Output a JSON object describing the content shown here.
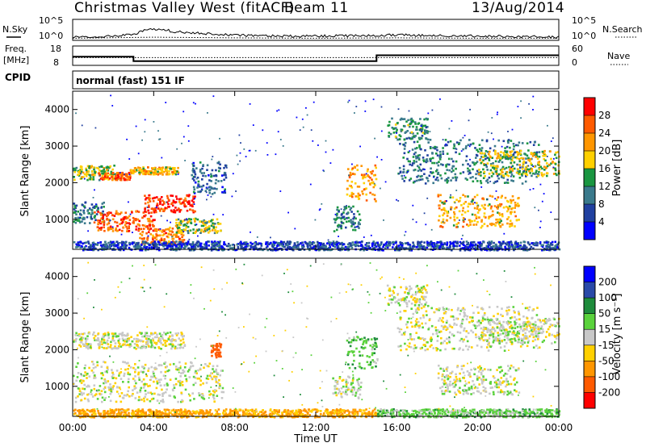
{
  "header": {
    "title": "Christmas Valley West (fitACF)",
    "beam": "Beam 11",
    "date": "13/Aug/2014"
  },
  "strip_labels": {
    "nsky": "N.Sky",
    "nsky_ticks": [
      "10^5",
      "10^0"
    ],
    "nsearch": "N.Search",
    "nsearch_ticks": [
      "10^5",
      "10^0"
    ],
    "freq_line1": "Freq.",
    "freq_line2": "[MHz]",
    "freq_ticks": [
      "18",
      "8"
    ],
    "nave": "Nave",
    "nave_ticks": [
      "60",
      "0"
    ],
    "cpid": "CPID",
    "cpid_value": "normal (fast) 151 IF"
  },
  "x_axis": {
    "ticks": [
      "00:00",
      "04:00",
      "08:00",
      "12:00",
      "16:00",
      "20:00",
      "00:00"
    ],
    "label": "Time UT"
  },
  "chart_data": [
    {
      "type": "line",
      "panel": "noise",
      "series": [
        {
          "name": "N.Sky",
          "style": "solid",
          "x": [
            0,
            1,
            2,
            3,
            3.5,
            4,
            4.5,
            5,
            6,
            7,
            8,
            10,
            12,
            14,
            16,
            18,
            20,
            22,
            24
          ],
          "y": [
            0.15,
            0.18,
            0.2,
            0.3,
            0.45,
            0.55,
            0.5,
            0.42,
            0.35,
            0.3,
            0.25,
            0.2,
            0.2,
            0.22,
            0.25,
            0.22,
            0.2,
            0.18,
            0.15
          ]
        },
        {
          "name": "N.Search",
          "style": "dotted",
          "x": [
            0,
            4,
            8,
            12,
            16,
            20,
            24
          ],
          "y": [
            0.1,
            0.15,
            0.12,
            0.1,
            0.12,
            0.1,
            0.1
          ]
        }
      ]
    },
    {
      "type": "line",
      "panel": "freq_nave",
      "y_left_range": [
        8,
        18
      ],
      "y_right_range": [
        0,
        60
      ],
      "series": [
        {
          "name": "Freq.",
          "style": "solid",
          "x": [
            0,
            3,
            3,
            15,
            15,
            24
          ],
          "y": [
            12.5,
            12.5,
            10.2,
            10.2,
            13.2,
            13.2
          ]
        },
        {
          "name": "Nave",
          "style": "dotted",
          "x": [
            0,
            24
          ],
          "y": [
            24,
            24
          ]
        }
      ]
    },
    {
      "type": "heatmap",
      "panel": "power",
      "ylabel": "Slant Range [km]",
      "yticks": [
        "1000",
        "2000",
        "3000",
        "4000"
      ],
      "xlim": [
        0,
        24
      ],
      "ylim": [
        180,
        4500
      ],
      "colorbar": {
        "label": "Power [dB]",
        "ticks": [
          "28",
          "24",
          "20",
          "16",
          "12",
          "8",
          "4"
        ],
        "colors": [
          "#ff0000",
          "#ff5a00",
          "#ff9600",
          "#ffd000",
          "#1a9641",
          "#3a7a8c",
          "#2040a0",
          "#0000ff"
        ]
      },
      "clusters": [
        {
          "t": [
            0,
            2.2
          ],
          "r": [
            2100,
            2500
          ],
          "v": 16
        },
        {
          "t": [
            1.2,
            2.8
          ],
          "r": [
            2100,
            2300
          ],
          "v": 26
        },
        {
          "t": [
            2.8,
            5.2
          ],
          "r": [
            2250,
            2450
          ],
          "v": 20
        },
        {
          "t": [
            0,
            1.5
          ],
          "r": [
            900,
            1500
          ],
          "v": 10
        },
        {
          "t": [
            1,
            4
          ],
          "r": [
            700,
            1250
          ],
          "v": 26
        },
        {
          "t": [
            3.5,
            6
          ],
          "r": [
            1200,
            1700
          ],
          "v": 28
        },
        {
          "t": [
            3.2,
            5.5
          ],
          "r": [
            350,
            800
          ],
          "v": 24
        },
        {
          "t": [
            5,
            7.3
          ],
          "r": [
            650,
            1050
          ],
          "v": 16
        },
        {
          "t": [
            5.8,
            7.6
          ],
          "r": [
            1700,
            2600
          ],
          "v": 8
        },
        {
          "t": [
            13.5,
            15
          ],
          "r": [
            1500,
            2500
          ],
          "v": 22
        },
        {
          "t": [
            12.8,
            14.2
          ],
          "r": [
            700,
            1400
          ],
          "v": 10
        },
        {
          "t": [
            15.5,
            17.5
          ],
          "r": [
            3200,
            3800
          ],
          "v": 12
        },
        {
          "t": [
            16,
            23
          ],
          "r": [
            2000,
            3200
          ],
          "v": 10
        },
        {
          "t": [
            18,
            22
          ],
          "r": [
            800,
            1700
          ],
          "v": 20
        },
        {
          "t": [
            20,
            24
          ],
          "r": [
            2200,
            2900
          ],
          "v": 18
        },
        {
          "t": [
            0,
            24
          ],
          "r": [
            180,
            420
          ],
          "v": 6
        }
      ]
    },
    {
      "type": "heatmap",
      "panel": "velocity",
      "ylabel": "Slant Range [km]",
      "yticks": [
        "1000",
        "2000",
        "3000",
        "4000"
      ],
      "xlim": [
        0,
        24
      ],
      "ylim": [
        180,
        4500
      ],
      "colorbar": {
        "label": "Velocity [m s⁻¹]",
        "ticks": [
          "200",
          "100",
          "50",
          "15",
          "-15",
          "-50",
          "-100",
          "-200"
        ],
        "colors": [
          "#0000ff",
          "#2a4aa8",
          "#1e8c3c",
          "#5ad23c",
          "#c8c8c8",
          "#ffd000",
          "#ff9600",
          "#ff5a00",
          "#ff0000"
        ]
      },
      "clusters": [
        {
          "t": [
            0,
            5.5
          ],
          "r": [
            2050,
            2500
          ],
          "v": 0
        },
        {
          "t": [
            0,
            7.4
          ],
          "r": [
            600,
            1700
          ],
          "v": 0
        },
        {
          "t": [
            6.8,
            7.3
          ],
          "r": [
            1800,
            2200
          ],
          "v": -150
        },
        {
          "t": [
            13.5,
            15
          ],
          "r": [
            1500,
            2400
          ],
          "v": 40
        },
        {
          "t": [
            12.8,
            14.2
          ],
          "r": [
            700,
            1300
          ],
          "v": 0
        },
        {
          "t": [
            15.5,
            17.5
          ],
          "r": [
            3200,
            3800
          ],
          "v": 0
        },
        {
          "t": [
            16,
            23
          ],
          "r": [
            2000,
            3200
          ],
          "v": 0
        },
        {
          "t": [
            18,
            22
          ],
          "r": [
            800,
            1600
          ],
          "v": 0
        },
        {
          "t": [
            20,
            24
          ],
          "r": [
            2200,
            2900
          ],
          "v": 0
        },
        {
          "t": [
            0,
            15
          ],
          "r": [
            180,
            400
          ],
          "v": -60
        },
        {
          "t": [
            15,
            24
          ],
          "r": [
            180,
            400
          ],
          "v": 30
        }
      ]
    }
  ]
}
